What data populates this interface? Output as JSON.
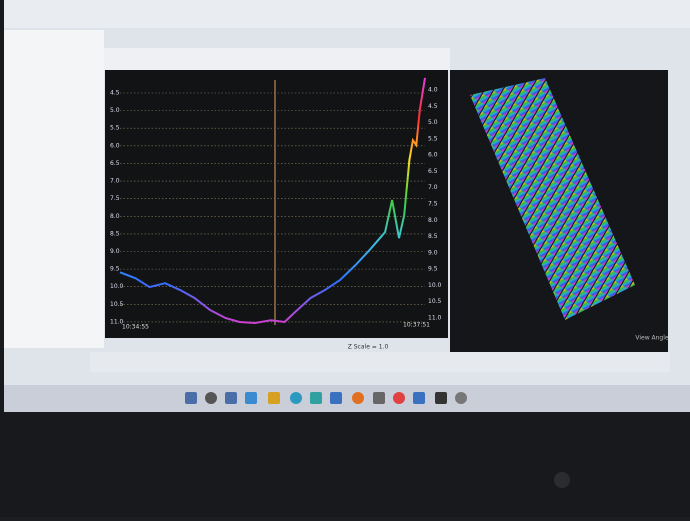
{
  "chart_data": {
    "type": "line",
    "x": [
      0,
      9,
      17,
      26,
      35,
      43,
      52,
      61,
      69,
      78,
      87,
      95,
      101,
      110,
      118,
      127,
      136,
      144,
      153,
      157,
      161,
      164,
      167,
      169,
      171,
      173,
      176
    ],
    "values": [
      9.59,
      9.76,
      10.01,
      9.9,
      10.1,
      10.32,
      10.66,
      10.89,
      11.0,
      11.03,
      10.95,
      11.0,
      10.72,
      10.32,
      10.1,
      9.81,
      9.38,
      8.96,
      8.45,
      7.54,
      8.62,
      7.97,
      6.4,
      5.84,
      5.98,
      4.98,
      4.07
    ],
    "colors": [
      "#e040e0",
      "#ff3030",
      "#ffe020",
      "#40d040",
      "#40c0e0",
      "#3070ff",
      "#d040d0"
    ],
    "xlim": [
      0,
      176
    ],
    "x_start_label": "10:34:55",
    "x_end_label": "10:37:51",
    "ylim": [
      4.0,
      11.2
    ],
    "y_inverted": true,
    "yticks": [
      4.5,
      {
        "value": 5,
        "label": "5.0"
      },
      5.5,
      {
        "value": 6,
        "label": "6.0"
      },
      6.5,
      {
        "value": 7,
        "label": "7.0"
      },
      7.5,
      {
        "value": 8,
        "label": "8.0"
      },
      8.5,
      {
        "value": 9,
        "label": "9.0"
      },
      9.5,
      {
        "value": 10,
        "label": "10.0"
      },
      10.5,
      {
        "value": 11,
        "label": "11.0"
      }
    ],
    "y2lim": [
      3.55,
      11.34
    ],
    "y2ticks": [
      {
        "value": 4,
        "label": "4.0"
      },
      4.5,
      {
        "value": 5,
        "label": "5.0"
      },
      5.5,
      {
        "value": 6,
        "label": "6.0"
      },
      6.5,
      {
        "value": 7,
        "label": "7.0"
      },
      7.5,
      {
        "value": 8,
        "label": "8.0"
      },
      8.5,
      {
        "value": 9,
        "label": "9.0"
      },
      9.5,
      {
        "value": 10,
        "label": "10.0"
      },
      10.5,
      {
        "value": 11,
        "label": "11.0"
      }
    ],
    "grid": true,
    "scale_label": "Z Scale = 1.0",
    "view_label": "View Angle"
  }
}
